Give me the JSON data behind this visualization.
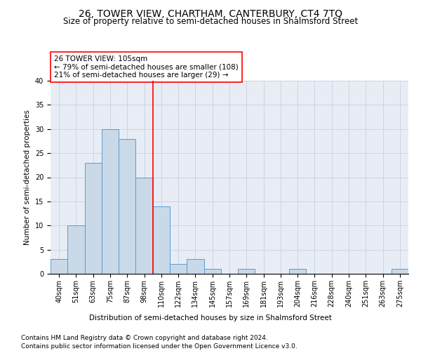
{
  "title": "26, TOWER VIEW, CHARTHAM, CANTERBURY, CT4 7TQ",
  "subtitle": "Size of property relative to semi-detached houses in Shalmsford Street",
  "xlabel": "Distribution of semi-detached houses by size in Shalmsford Street",
  "ylabel": "Number of semi-detached properties",
  "footer_line1": "Contains HM Land Registry data © Crown copyright and database right 2024.",
  "footer_line2": "Contains public sector information licensed under the Open Government Licence v3.0.",
  "categories": [
    "40sqm",
    "51sqm",
    "63sqm",
    "75sqm",
    "87sqm",
    "98sqm",
    "110sqm",
    "122sqm",
    "134sqm",
    "145sqm",
    "157sqm",
    "169sqm",
    "181sqm",
    "193sqm",
    "204sqm",
    "216sqm",
    "228sqm",
    "240sqm",
    "251sqm",
    "263sqm",
    "275sqm"
  ],
  "values": [
    3,
    10,
    23,
    30,
    28,
    20,
    14,
    2,
    3,
    1,
    0,
    1,
    0,
    0,
    1,
    0,
    0,
    0,
    0,
    0,
    1
  ],
  "bar_color": "#c9d9e8",
  "bar_edge_color": "#5b9bd5",
  "annotation_line1": "26 TOWER VIEW: 105sqm",
  "annotation_line2": "← 79% of semi-detached houses are smaller (108)",
  "annotation_line3": "21% of semi-detached houses are larger (29) →",
  "annotation_box_color": "white",
  "annotation_box_edge_color": "red",
  "vline_color": "red",
  "vline_x_index": 5.5,
  "ylim": [
    0,
    40
  ],
  "yticks": [
    0,
    5,
    10,
    15,
    20,
    25,
    30,
    35,
    40
  ],
  "grid_color": "#c8d0df",
  "background_color": "#e8edf5",
  "title_fontsize": 10,
  "subtitle_fontsize": 8.5,
  "axis_label_fontsize": 7.5,
  "tick_fontsize": 7,
  "annotation_fontsize": 7.5,
  "footer_fontsize": 6.5
}
